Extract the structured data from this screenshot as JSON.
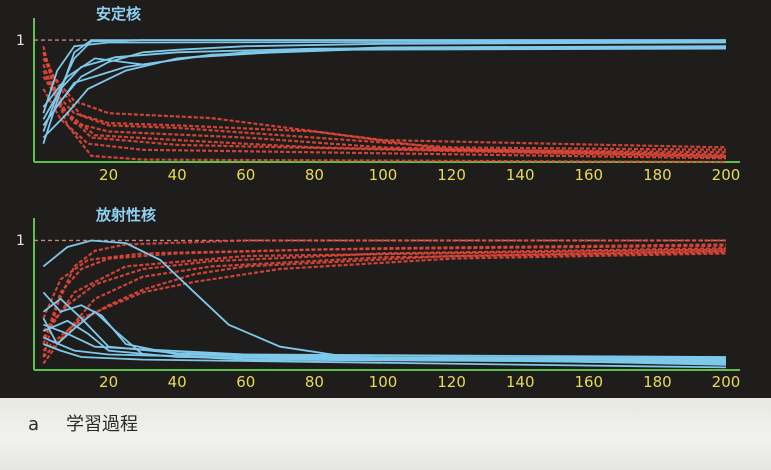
{
  "chart_data": [
    {
      "type": "line",
      "title": "安定核",
      "y_tick": "1",
      "x_ticks": [
        20,
        40,
        60,
        80,
        100,
        120,
        140,
        160,
        180,
        200
      ],
      "xlim": [
        0,
        200
      ],
      "ylim": [
        0,
        1.05
      ],
      "colors": {
        "learned": "#7ec8ea",
        "output": "#e0483a",
        "axis": "#5cc24a",
        "tick_label": "#e6dc50"
      },
      "series_learned": [
        [
          [
            1,
            0.25
          ],
          [
            5,
            0.55
          ],
          [
            10,
            0.85
          ],
          [
            15,
            0.99
          ],
          [
            30,
            1.0
          ],
          [
            200,
            1.0
          ]
        ],
        [
          [
            1,
            0.15
          ],
          [
            5,
            0.5
          ],
          [
            10,
            0.9
          ],
          [
            15,
            1.0
          ],
          [
            200,
            1.0
          ]
        ],
        [
          [
            1,
            0.3
          ],
          [
            6,
            0.5
          ],
          [
            12,
            0.7
          ],
          [
            20,
            0.82
          ],
          [
            30,
            0.9
          ],
          [
            40,
            0.92
          ],
          [
            60,
            0.95
          ],
          [
            100,
            0.97
          ],
          [
            200,
            0.98
          ]
        ],
        [
          [
            1,
            0.2
          ],
          [
            8,
            0.4
          ],
          [
            14,
            0.6
          ],
          [
            25,
            0.75
          ],
          [
            40,
            0.85
          ],
          [
            60,
            0.9
          ],
          [
            100,
            0.94
          ],
          [
            200,
            0.95
          ]
        ],
        [
          [
            1,
            0.35
          ],
          [
            6,
            0.6
          ],
          [
            12,
            0.78
          ],
          [
            22,
            0.86
          ],
          [
            40,
            0.9
          ],
          [
            80,
            0.93
          ],
          [
            200,
            0.94
          ]
        ],
        [
          [
            1,
            0.45
          ],
          [
            8,
            0.7
          ],
          [
            16,
            0.85
          ],
          [
            30,
            0.8
          ],
          [
            45,
            0.86
          ],
          [
            80,
            0.92
          ],
          [
            200,
            0.93
          ]
        ],
        [
          [
            1,
            0.4
          ],
          [
            5,
            0.75
          ],
          [
            10,
            0.95
          ],
          [
            20,
            0.98
          ],
          [
            200,
            0.99
          ]
        ],
        [
          [
            1,
            0.3
          ],
          [
            10,
            0.65
          ],
          [
            25,
            0.78
          ],
          [
            50,
            0.88
          ],
          [
            100,
            0.93
          ],
          [
            200,
            0.94
          ]
        ]
      ],
      "series_output": [
        [
          [
            1,
            0.95
          ],
          [
            4,
            0.6
          ],
          [
            8,
            0.3
          ],
          [
            15,
            0.05
          ],
          [
            30,
            0.02
          ],
          [
            200,
            0.0
          ]
        ],
        [
          [
            1,
            0.9
          ],
          [
            5,
            0.55
          ],
          [
            10,
            0.4
          ],
          [
            20,
            0.32
          ],
          [
            40,
            0.3
          ],
          [
            80,
            0.25
          ],
          [
            120,
            0.1
          ],
          [
            200,
            0.08
          ]
        ],
        [
          [
            1,
            0.85
          ],
          [
            6,
            0.6
          ],
          [
            12,
            0.38
          ],
          [
            20,
            0.3
          ],
          [
            40,
            0.28
          ],
          [
            80,
            0.2
          ],
          [
            120,
            0.12
          ],
          [
            200,
            0.1
          ]
        ],
        [
          [
            1,
            0.8
          ],
          [
            5,
            0.5
          ],
          [
            10,
            0.32
          ],
          [
            20,
            0.25
          ],
          [
            60,
            0.2
          ],
          [
            100,
            0.12
          ],
          [
            200,
            0.06
          ]
        ],
        [
          [
            1,
            0.7
          ],
          [
            8,
            0.4
          ],
          [
            16,
            0.22
          ],
          [
            40,
            0.18
          ],
          [
            80,
            0.12
          ],
          [
            200,
            0.05
          ]
        ],
        [
          [
            1,
            0.6
          ],
          [
            6,
            0.35
          ],
          [
            14,
            0.15
          ],
          [
            30,
            0.1
          ],
          [
            200,
            0.03
          ]
        ],
        [
          [
            1,
            0.9
          ],
          [
            4,
            0.7
          ],
          [
            10,
            0.5
          ],
          [
            20,
            0.4
          ],
          [
            50,
            0.36
          ],
          [
            100,
            0.18
          ],
          [
            200,
            0.12
          ]
        ],
        [
          [
            1,
            0.75
          ],
          [
            6,
            0.45
          ],
          [
            15,
            0.2
          ],
          [
            40,
            0.14
          ],
          [
            200,
            0.04
          ]
        ]
      ]
    },
    {
      "type": "line",
      "title": "放射性核",
      "y_tick": "1",
      "x_ticks": [
        20,
        40,
        60,
        80,
        100,
        120,
        140,
        160,
        180,
        200
      ],
      "xlim": [
        0,
        200
      ],
      "ylim": [
        0,
        1.05
      ],
      "colors": {
        "learned": "#7ec8ea",
        "output": "#e0483a",
        "axis": "#5cc24a",
        "tick_label": "#e6dc50"
      },
      "series_learned": [
        [
          [
            1,
            0.8
          ],
          [
            8,
            0.95
          ],
          [
            15,
            1.0
          ],
          [
            25,
            0.98
          ],
          [
            35,
            0.85
          ],
          [
            45,
            0.6
          ],
          [
            55,
            0.35
          ],
          [
            70,
            0.18
          ],
          [
            90,
            0.1
          ],
          [
            200,
            0.08
          ]
        ],
        [
          [
            1,
            0.6
          ],
          [
            6,
            0.45
          ],
          [
            12,
            0.5
          ],
          [
            18,
            0.42
          ],
          [
            25,
            0.2
          ],
          [
            40,
            0.12
          ],
          [
            80,
            0.1
          ],
          [
            200,
            0.09
          ]
        ],
        [
          [
            1,
            0.4
          ],
          [
            5,
            0.2
          ],
          [
            10,
            0.32
          ],
          [
            16,
            0.45
          ],
          [
            22,
            0.3
          ],
          [
            30,
            0.12
          ],
          [
            60,
            0.08
          ],
          [
            200,
            0.06
          ]
        ],
        [
          [
            1,
            0.3
          ],
          [
            8,
            0.38
          ],
          [
            14,
            0.28
          ],
          [
            20,
            0.15
          ],
          [
            40,
            0.1
          ],
          [
            200,
            0.05
          ]
        ],
        [
          [
            1,
            0.45
          ],
          [
            6,
            0.55
          ],
          [
            12,
            0.4
          ],
          [
            20,
            0.18
          ],
          [
            40,
            0.13
          ],
          [
            200,
            0.04
          ]
        ],
        [
          [
            1,
            0.2
          ],
          [
            6,
            0.15
          ],
          [
            12,
            0.1
          ],
          [
            30,
            0.08
          ],
          [
            200,
            0.02
          ]
        ],
        [
          [
            1,
            0.35
          ],
          [
            8,
            0.28
          ],
          [
            16,
            0.18
          ],
          [
            30,
            0.16
          ],
          [
            60,
            0.12
          ],
          [
            200,
            0.1
          ]
        ],
        [
          [
            1,
            0.25
          ],
          [
            10,
            0.15
          ],
          [
            20,
            0.12
          ],
          [
            50,
            0.1
          ],
          [
            200,
            0.07
          ]
        ]
      ],
      "series_output": [
        [
          [
            1,
            0.1
          ],
          [
            5,
            0.5
          ],
          [
            10,
            0.8
          ],
          [
            16,
            0.92
          ],
          [
            25,
            0.97
          ],
          [
            60,
            1.0
          ],
          [
            200,
            1.0
          ]
        ],
        [
          [
            1,
            0.2
          ],
          [
            6,
            0.6
          ],
          [
            12,
            0.78
          ],
          [
            20,
            0.86
          ],
          [
            40,
            0.9
          ],
          [
            80,
            0.93
          ],
          [
            200,
            0.96
          ]
        ],
        [
          [
            1,
            0.3
          ],
          [
            8,
            0.5
          ],
          [
            16,
            0.66
          ],
          [
            30,
            0.78
          ],
          [
            50,
            0.84
          ],
          [
            100,
            0.9
          ],
          [
            200,
            0.94
          ]
        ],
        [
          [
            1,
            0.15
          ],
          [
            10,
            0.35
          ],
          [
            20,
            0.5
          ],
          [
            30,
            0.62
          ],
          [
            45,
            0.74
          ],
          [
            60,
            0.8
          ],
          [
            120,
            0.88
          ],
          [
            200,
            0.92
          ]
        ],
        [
          [
            1,
            0.05
          ],
          [
            8,
            0.3
          ],
          [
            16,
            0.55
          ],
          [
            30,
            0.72
          ],
          [
            50,
            0.8
          ],
          [
            100,
            0.87
          ],
          [
            200,
            0.91
          ]
        ],
        [
          [
            1,
            0.4
          ],
          [
            6,
            0.7
          ],
          [
            14,
            0.85
          ],
          [
            30,
            0.9
          ],
          [
            100,
            0.94
          ],
          [
            200,
            0.97
          ]
        ],
        [
          [
            1,
            0.25
          ],
          [
            10,
            0.6
          ],
          [
            25,
            0.8
          ],
          [
            60,
            0.88
          ],
          [
            200,
            0.93
          ]
        ],
        [
          [
            1,
            0.1
          ],
          [
            12,
            0.4
          ],
          [
            30,
            0.6
          ],
          [
            45,
            0.68
          ],
          [
            70,
            0.78
          ],
          [
            120,
            0.86
          ],
          [
            200,
            0.9
          ]
        ]
      ]
    }
  ],
  "caption": {
    "letter": "a",
    "text": "学習過程"
  }
}
